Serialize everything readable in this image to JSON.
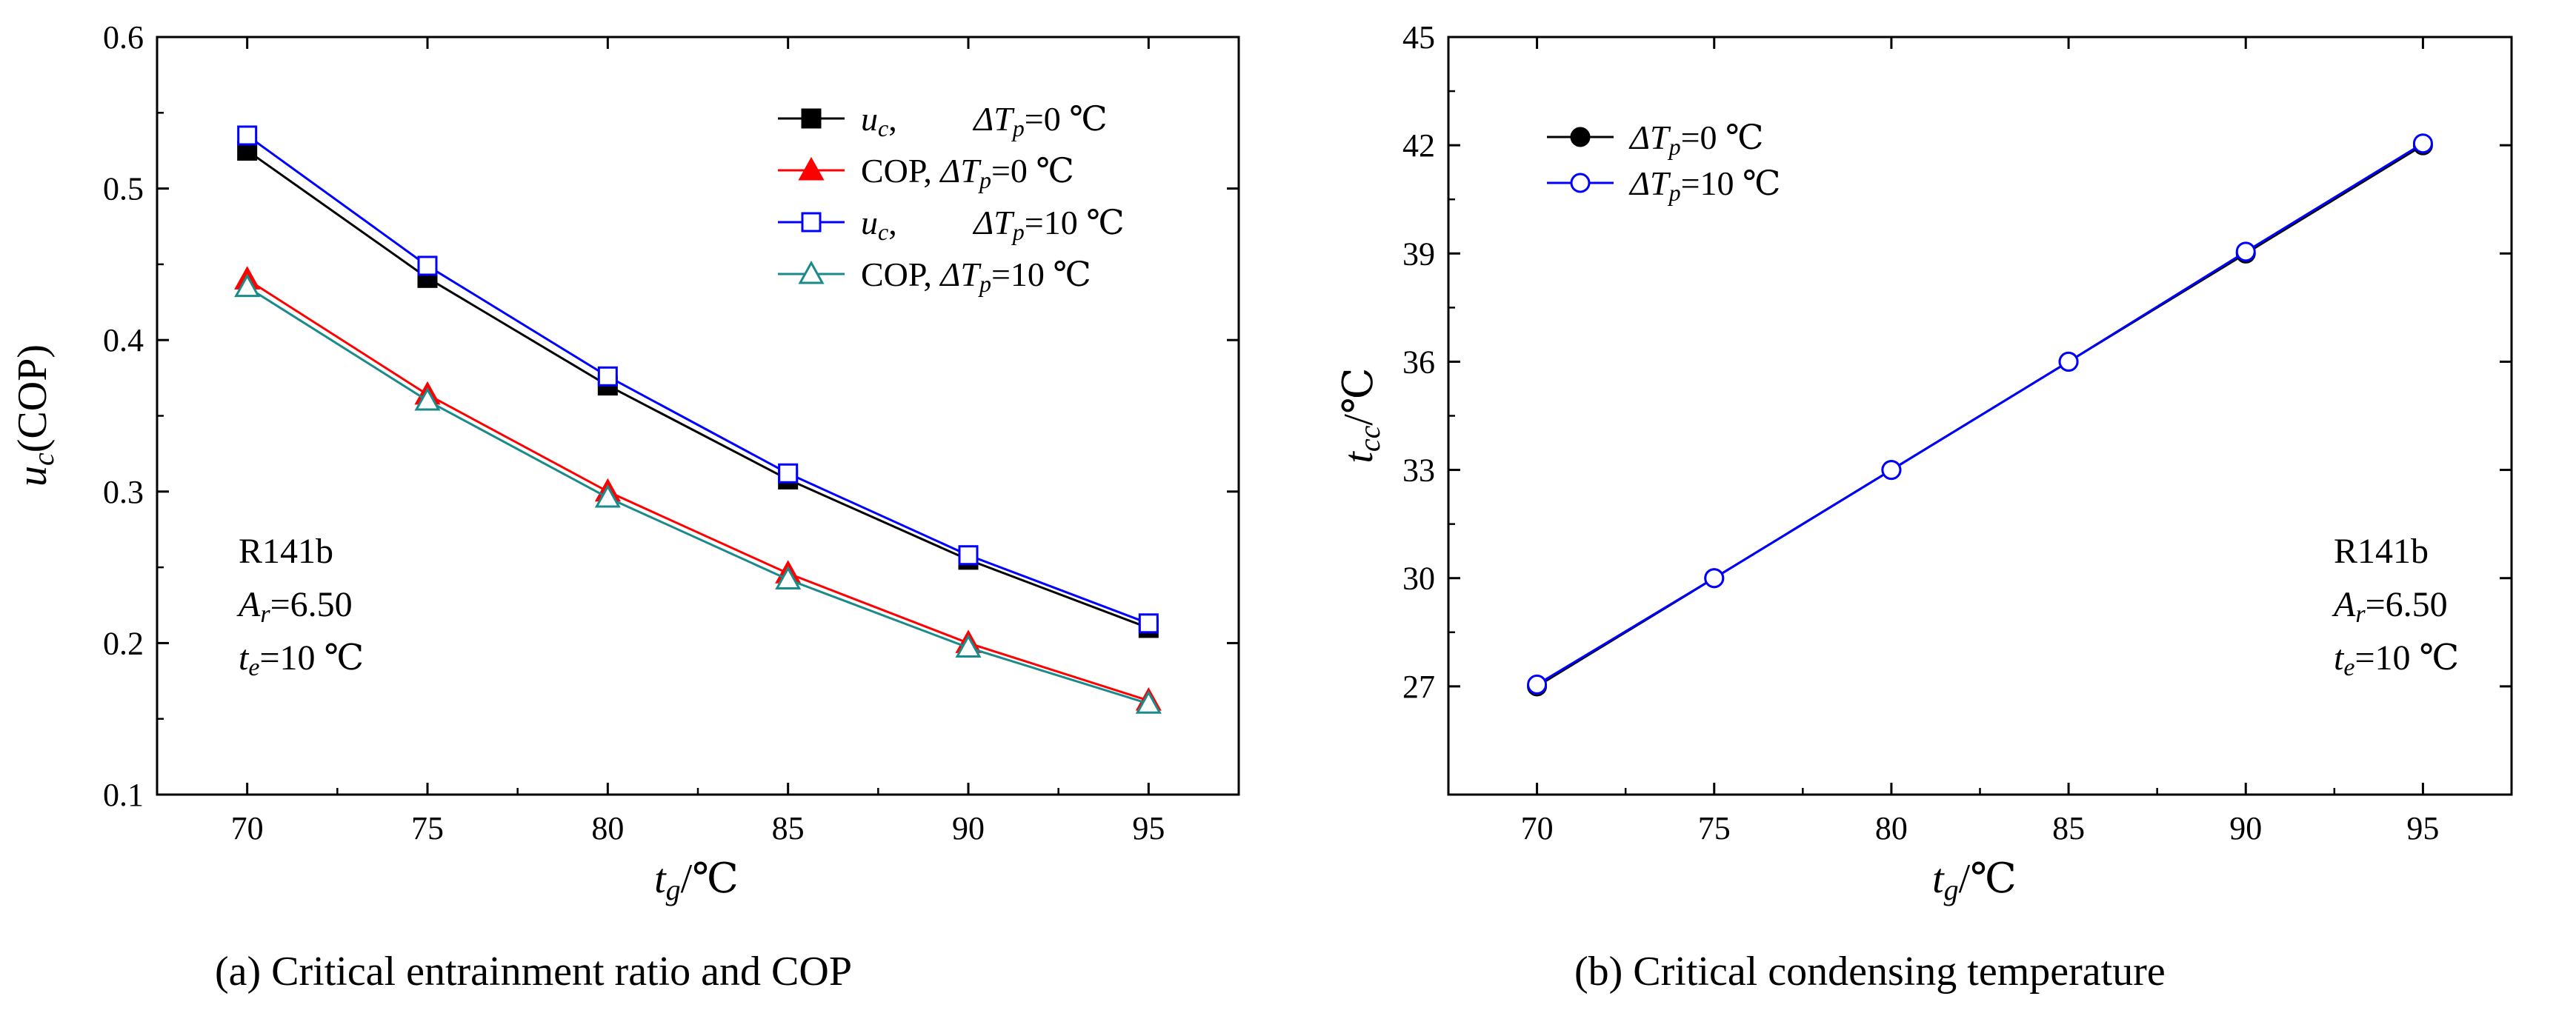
{
  "colors": {
    "black": "#000000",
    "red": "#ff0000",
    "blue": "#0000ff",
    "teal": "#1a8a8a",
    "axis": "#000000"
  },
  "chart_data": [
    {
      "type": "line",
      "caption": "(a)  Critical entrainment ratio and COP",
      "xlabel": {
        "var": "t",
        "sub": "g",
        "unit": "/℃"
      },
      "ylabel": {
        "var": "u",
        "sub": "c",
        "rest": "(COP)"
      },
      "xlim": [
        67.5,
        97.5
      ],
      "ylim": [
        0.1,
        0.6
      ],
      "xticks": [
        70,
        75,
        80,
        85,
        90,
        95
      ],
      "yticks": [
        0.1,
        0.2,
        0.3,
        0.4,
        0.5,
        0.6
      ],
      "ytick_labels": [
        "0.1",
        "0.2",
        "0.3",
        "0.4",
        "0.5",
        "0.6"
      ],
      "annotation": {
        "l1": "R141b",
        "l2var": "A",
        "l2sub": "r",
        "l2val": "=6.50",
        "l3var": "t",
        "l3sub": "e",
        "l3val": "=10 ℃"
      },
      "legend_position": "top-right",
      "x": [
        70,
        75,
        80,
        85,
        90,
        95
      ],
      "series": [
        {
          "name": "uc, ΔTp=0 ℃",
          "prefix_var": "u",
          "prefix_sub": "c",
          "prefix_rest": ",",
          "dt_var": "ΔT",
          "dt_sub": "p",
          "dt_val": "=0 ℃",
          "color": "#000000",
          "marker": "square",
          "filled": true,
          "values": [
            0.525,
            0.441,
            0.37,
            0.308,
            0.255,
            0.21
          ]
        },
        {
          "name": "COP, ΔTp=0 ℃",
          "prefix_var": "",
          "prefix_sub": "",
          "prefix_rest": "COP,",
          "dt_var": "ΔT",
          "dt_sub": "p",
          "dt_val": "=0 ℃",
          "color": "#ff0000",
          "marker": "triangle",
          "filled": true,
          "values": [
            0.44,
            0.364,
            0.3,
            0.246,
            0.2,
            0.162
          ]
        },
        {
          "name": "uc, ΔTp=10 ℃",
          "prefix_var": "u",
          "prefix_sub": "c",
          "prefix_rest": ",",
          "dt_var": "ΔT",
          "dt_sub": "p",
          "dt_val": "=10 ℃",
          "color": "#0000ff",
          "marker": "square",
          "filled": false,
          "values": [
            0.535,
            0.449,
            0.376,
            0.312,
            0.258,
            0.213
          ]
        },
        {
          "name": "COP, ΔTp=10 ℃",
          "prefix_var": "",
          "prefix_sub": "",
          "prefix_rest": "COP,",
          "dt_var": "ΔT",
          "dt_sub": "p",
          "dt_val": "=10 ℃",
          "color": "#1a8a8a",
          "marker": "triangle",
          "filled": false,
          "values": [
            0.435,
            0.36,
            0.296,
            0.242,
            0.197,
            0.16
          ]
        }
      ]
    },
    {
      "type": "line",
      "caption": "(b)  Critical condensing temperature",
      "xlabel": {
        "var": "t",
        "sub": "g",
        "unit": "/℃"
      },
      "ylabel": {
        "var": "t",
        "sub": "cc",
        "rest": "/℃"
      },
      "xlim": [
        67.5,
        97.5
      ],
      "ylim": [
        24,
        45
      ],
      "xticks": [
        70,
        75,
        80,
        85,
        90,
        95
      ],
      "yticks": [
        27,
        30,
        33,
        36,
        39,
        42,
        45
      ],
      "ytick_labels": [
        "27",
        "30",
        "33",
        "36",
        "39",
        "42",
        "45"
      ],
      "annotation": {
        "l1": "R141b",
        "l2var": "A",
        "l2sub": "r",
        "l2val": "=6.50",
        "l3var": "t",
        "l3sub": "e",
        "l3val": "=10 ℃"
      },
      "legend_position": "top-left",
      "x": [
        70,
        75,
        80,
        85,
        90,
        95
      ],
      "series": [
        {
          "name": "ΔTp=0 ℃",
          "prefix_var": "",
          "prefix_sub": "",
          "prefix_rest": "",
          "dt_var": "ΔT",
          "dt_sub": "p",
          "dt_val": "=0 ℃",
          "color": "#000000",
          "marker": "circle",
          "filled": true,
          "values": [
            27.0,
            30.0,
            33.0,
            36.0,
            39.0,
            42.0
          ]
        },
        {
          "name": "ΔTp=10 ℃",
          "prefix_var": "",
          "prefix_sub": "",
          "prefix_rest": "",
          "dt_var": "ΔT",
          "dt_sub": "p",
          "dt_val": "=10 ℃",
          "color": "#0000ff",
          "marker": "circle",
          "filled": false,
          "values": [
            27.05,
            30.0,
            33.0,
            36.0,
            39.05,
            42.05
          ]
        }
      ]
    }
  ]
}
